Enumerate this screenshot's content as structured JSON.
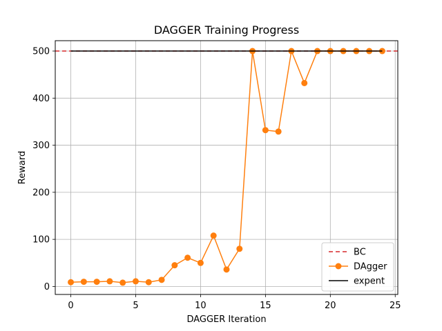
{
  "chart_data": {
    "type": "line",
    "title": "DAGGER Training Progress",
    "xlabel": "DAGGER Iteration",
    "ylabel": "Reward",
    "xlim": [
      -1.2,
      25.2
    ],
    "ylim": [
      -17,
      522
    ],
    "xticks": [
      0,
      5,
      10,
      15,
      20,
      25
    ],
    "yticks": [
      0,
      100,
      200,
      300,
      400,
      500
    ],
    "grid": true,
    "legend_position": "lower-right",
    "series": [
      {
        "name": "BC",
        "style": "dashed",
        "color": "#d62728",
        "x": [
          -1.2,
          25.2
        ],
        "y": [
          500,
          500
        ]
      },
      {
        "name": "DAgger",
        "style": "line-marker",
        "color": "#ff7f0e",
        "x": [
          0,
          1,
          2,
          3,
          4,
          5,
          6,
          7,
          8,
          9,
          10,
          11,
          12,
          13,
          14,
          15,
          16,
          17,
          18,
          19,
          20,
          21,
          22,
          23,
          24
        ],
        "y": [
          9,
          10,
          10,
          11,
          8,
          11,
          9,
          14,
          45,
          61,
          50,
          108,
          36,
          80,
          500,
          332,
          329,
          500,
          432,
          500,
          500,
          500,
          500,
          500,
          500
        ]
      },
      {
        "name": "expent",
        "style": "solid",
        "color": "#000000",
        "x": [
          0,
          24
        ],
        "y": [
          500,
          500
        ]
      }
    ]
  }
}
